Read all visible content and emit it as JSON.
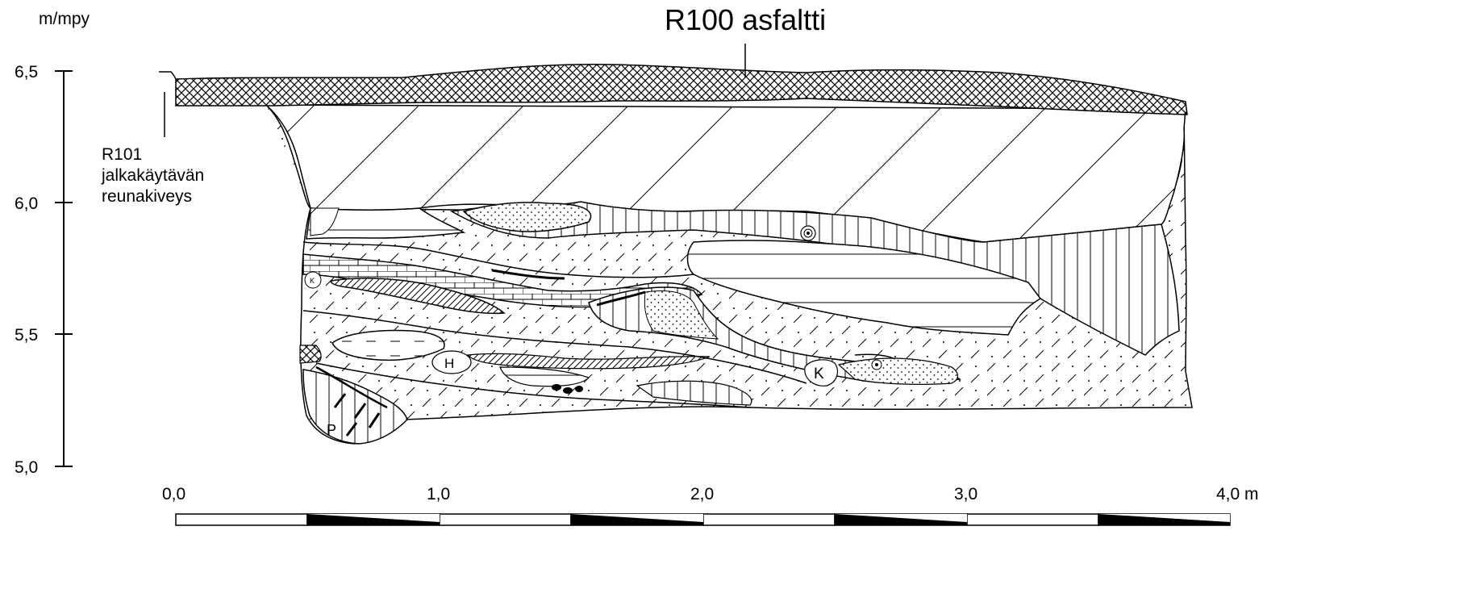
{
  "vertical_axis": {
    "unit": "m/mpy",
    "ticks": [
      {
        "value": 6.5,
        "label": "6,5"
      },
      {
        "value": 6.0,
        "label": "6,0"
      },
      {
        "value": 5.5,
        "label": "5,5"
      },
      {
        "value": 5.0,
        "label": "5,0"
      }
    ]
  },
  "horizontal_scale": {
    "ticks": [
      {
        "value": 0,
        "label": "0,0"
      },
      {
        "value": 1,
        "label": "1,0"
      },
      {
        "value": 2,
        "label": "2,0"
      },
      {
        "value": 3,
        "label": "3,0"
      },
      {
        "value": 4,
        "label": "4,0 m"
      }
    ]
  },
  "labels": {
    "asphalt": "R100 asfaltti",
    "curb_line1": "R101",
    "curb_line2": "jalkakäytävän",
    "curb_line3": "reunakiveys"
  },
  "find_markers": {
    "h": "H",
    "k_large": "K",
    "k_small": "K",
    "p": "P"
  }
}
